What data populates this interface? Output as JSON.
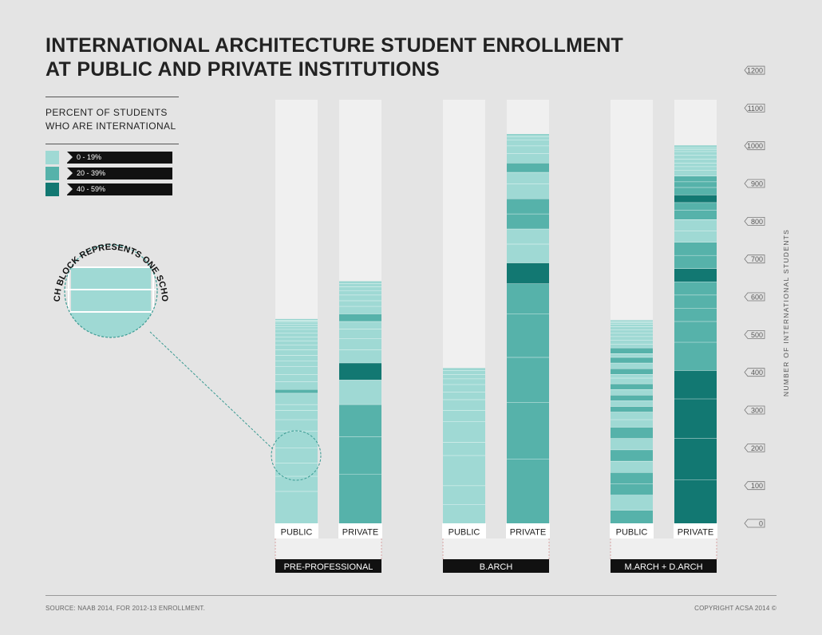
{
  "title_line1": "INTERNATIONAL ARCHITECTURE STUDENT ENROLLMENT",
  "title_line2": "AT PUBLIC AND PRIVATE INSTITUTIONS",
  "legend": {
    "title_line1": "PERCENT OF STUDENTS",
    "title_line2": "WHO ARE INTERNATIONAL",
    "items": [
      {
        "label": "0 - 19%",
        "color": "#9fd9d4"
      },
      {
        "label": "20 - 39%",
        "color": "#56b2aa"
      },
      {
        "label": "40 - 59%",
        "color": "#127872"
      }
    ]
  },
  "callout_text": "EACH BLOCK REPRESENTS ONE SCHOOL",
  "footer": {
    "source": "SOURCE: NAAB 2014, FOR 2012-13 ENROLLMENT.",
    "copyright": "COPYRIGHT ACSA 2014 ©"
  },
  "chart_data": {
    "type": "bar",
    "title": "INTERNATIONAL ARCHITECTURE STUDENT ENROLLMENT AT PUBLIC AND PRIVATE INSTITUTIONS",
    "ylabel": "NUMBER OF INTERNATIONAL STUDENTS",
    "ylim": [
      0,
      1200
    ],
    "yticks": [
      0,
      100,
      200,
      300,
      400,
      500,
      600,
      700,
      800,
      900,
      1000,
      1100,
      1200
    ],
    "groups": [
      {
        "label": "PRE-PROFESSIONAL",
        "bars": [
          {
            "label": "PUBLIC",
            "total": 545,
            "segments": [
              [
                85,
                1
              ],
              [
                40,
                1
              ],
              [
                35,
                1
              ],
              [
                40,
                1
              ],
              [
                45,
                1
              ],
              [
                30,
                1
              ],
              [
                25,
                1
              ],
              [
                15,
                1
              ],
              [
                30,
                1
              ],
              [
                10,
                2
              ],
              [
                20,
                1
              ],
              [
                20,
                1
              ],
              [
                20,
                1
              ],
              [
                15,
                1
              ],
              [
                15,
                1
              ],
              [
                15,
                1
              ],
              [
                12,
                1
              ],
              [
                12,
                1
              ],
              [
                10,
                1
              ],
              [
                10,
                1
              ],
              [
                10,
                1
              ],
              [
                8,
                1
              ],
              [
                6,
                1
              ],
              [
                5,
                1
              ],
              [
                3,
                1
              ],
              [
                2,
                1
              ],
              [
                2,
                1
              ]
            ]
          },
          {
            "label": "PRIVATE",
            "total": 640,
            "segments": [
              [
                130,
                2
              ],
              [
                100,
                2
              ],
              [
                85,
                2
              ],
              [
                65,
                1
              ],
              [
                45,
                3
              ],
              [
                35,
                1
              ],
              [
                30,
                1
              ],
              [
                25,
                1
              ],
              [
                20,
                1
              ],
              [
                20,
                2
              ],
              [
                20,
                1
              ],
              [
                15,
                1
              ],
              [
                15,
                1
              ],
              [
                12,
                1
              ],
              [
                10,
                1
              ],
              [
                8,
                1
              ],
              [
                5,
                1
              ]
            ]
          }
        ]
      },
      {
        "label": "B.ARCH",
        "bars": [
          {
            "label": "PUBLIC",
            "total": 410,
            "segments": [
              [
                50,
                1
              ],
              [
                50,
                1
              ],
              [
                80,
                1
              ],
              [
                35,
                1
              ],
              [
                55,
                1
              ],
              [
                30,
                1
              ],
              [
                28,
                1
              ],
              [
                20,
                1
              ],
              [
                20,
                1
              ],
              [
                15,
                1
              ],
              [
                12,
                1
              ],
              [
                10,
                1
              ],
              [
                5,
                1
              ]
            ]
          },
          {
            "label": "PRIVATE",
            "total": 1125,
            "segments": [
              [
                170,
                2
              ],
              [
                150,
                2
              ],
              [
                120,
                2
              ],
              [
                115,
                2
              ],
              [
                80,
                2
              ],
              [
                55,
                3
              ],
              [
                50,
                1
              ],
              [
                40,
                1
              ],
              [
                40,
                2
              ],
              [
                40,
                2
              ],
              [
                40,
                1
              ],
              [
                30,
                1
              ],
              [
                25,
                2
              ],
              [
                25,
                1
              ],
              [
                20,
                1
              ],
              [
                15,
                1
              ],
              [
                10,
                1
              ],
              [
                5,
                1
              ]
            ]
          }
        ]
      },
      {
        "label": "M.ARCH + D.ARCH",
        "bars": [
          {
            "label": "PUBLIC",
            "total": 585,
            "segments": [
              [
                35,
                2
              ],
              [
                40,
                1
              ],
              [
                30,
                2
              ],
              [
                30,
                2
              ],
              [
                30,
                1
              ],
              [
                30,
                2
              ],
              [
                30,
                1
              ],
              [
                30,
                2
              ],
              [
                20,
                1
              ],
              [
                20,
                1
              ],
              [
                15,
                2
              ],
              [
                15,
                1
              ],
              [
                15,
                2
              ],
              [
                15,
                1
              ],
              [
                15,
                2
              ],
              [
                15,
                1
              ],
              [
                10,
                1
              ],
              [
                15,
                2
              ],
              [
                15,
                1
              ],
              [
                15,
                2
              ],
              [
                10,
                1
              ],
              [
                15,
                2
              ],
              [
                10,
                1
              ],
              [
                10,
                1
              ],
              [
                10,
                1
              ],
              [
                10,
                1
              ],
              [
                8,
                1
              ],
              [
                8,
                1
              ],
              [
                6,
                1
              ],
              [
                5,
                1
              ],
              [
                3,
                1
              ],
              [
                2,
                1
              ]
            ]
          },
          {
            "label": "PRIVATE",
            "total": 1105,
            "segments": [
              [
                115,
                3
              ],
              [
                110,
                3
              ],
              [
                105,
                3
              ],
              [
                75,
                3
              ],
              [
                75,
                2
              ],
              [
                55,
                2
              ],
              [
                35,
                2
              ],
              [
                35,
                2
              ],
              [
                35,
                2
              ],
              [
                35,
                3
              ],
              [
                35,
                2
              ],
              [
                35,
                2
              ],
              [
                30,
                1
              ],
              [
                30,
                1
              ],
              [
                25,
                2
              ],
              [
                20,
                2
              ],
              [
                20,
                3
              ],
              [
                20,
                2
              ],
              [
                15,
                2
              ],
              [
                15,
                2
              ],
              [
                15,
                1
              ],
              [
                10,
                1
              ],
              [
                10,
                1
              ],
              [
                10,
                1
              ],
              [
                10,
                1
              ],
              [
                10,
                1
              ],
              [
                5,
                1
              ],
              [
                5,
                1
              ],
              [
                5,
                1
              ]
            ]
          }
        ]
      }
    ]
  }
}
